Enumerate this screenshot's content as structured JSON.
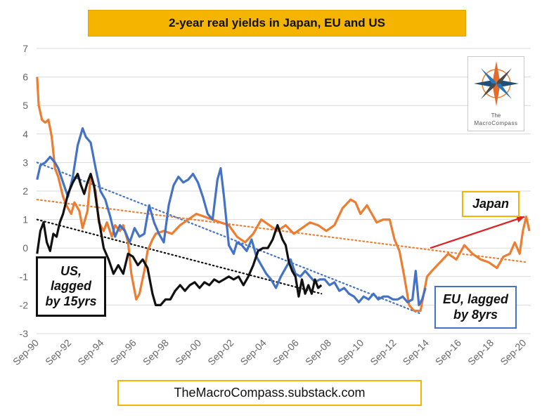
{
  "chart_data": {
    "type": "line",
    "title": "2-year real yields in Japan, EU and US",
    "xlabel": "",
    "ylabel": "",
    "ylim": [
      -3,
      7
    ],
    "yticks": [
      -3,
      -2,
      -1,
      0,
      1,
      2,
      3,
      4,
      5,
      6,
      7
    ],
    "xlim": [
      1990.667,
      2021.083
    ],
    "xticks": [
      "Sep-90",
      "Sep-92",
      "Sep-94",
      "Sep-96",
      "Sep-98",
      "Sep-00",
      "Sep-02",
      "Sep-04",
      "Sep-06",
      "Sep-08",
      "Sep-10",
      "Sep-12",
      "Sep-14",
      "Sep-16",
      "Sep-18",
      "Sep-20"
    ],
    "grid": true,
    "series": [
      {
        "name": "Japan",
        "color": "#ed7d31",
        "points": [
          [
            1990.7,
            6.0
          ],
          [
            1990.8,
            5.0
          ],
          [
            1991.0,
            4.5
          ],
          [
            1991.2,
            4.4
          ],
          [
            1991.4,
            4.5
          ],
          [
            1991.6,
            3.9
          ],
          [
            1991.8,
            2.8
          ],
          [
            1992.0,
            2.5
          ],
          [
            1992.3,
            1.8
          ],
          [
            1992.5,
            1.5
          ],
          [
            1992.8,
            1.2
          ],
          [
            1993.0,
            1.6
          ],
          [
            1993.3,
            1.3
          ],
          [
            1993.5,
            0.7
          ],
          [
            1993.8,
            1.3
          ],
          [
            1994.0,
            2.5
          ],
          [
            1994.3,
            2.0
          ],
          [
            1994.5,
            0.9
          ],
          [
            1994.8,
            0.6
          ],
          [
            1995.0,
            0.9
          ],
          [
            1995.3,
            0.4
          ],
          [
            1995.5,
            0.8
          ],
          [
            1995.8,
            0.6
          ],
          [
            1996.0,
            0.8
          ],
          [
            1996.3,
            0.2
          ],
          [
            1996.5,
            -0.9
          ],
          [
            1996.8,
            -1.8
          ],
          [
            1997.0,
            -1.6
          ],
          [
            1997.3,
            -0.8
          ],
          [
            1997.5,
            -0.1
          ],
          [
            1997.8,
            0.3
          ],
          [
            1998.0,
            0.5
          ],
          [
            1998.5,
            0.6
          ],
          [
            1999.0,
            0.5
          ],
          [
            1999.5,
            0.8
          ],
          [
            2000.0,
            1.0
          ],
          [
            2000.5,
            1.2
          ],
          [
            2001.0,
            1.1
          ],
          [
            2001.5,
            1.0
          ],
          [
            2002.0,
            0.9
          ],
          [
            2002.5,
            0.8
          ],
          [
            2003.0,
            0.4
          ],
          [
            2003.5,
            0.2
          ],
          [
            2004.0,
            0.5
          ],
          [
            2004.5,
            1.0
          ],
          [
            2005.0,
            0.8
          ],
          [
            2005.5,
            0.6
          ],
          [
            2006.0,
            0.8
          ],
          [
            2006.5,
            0.5
          ],
          [
            2007.0,
            0.7
          ],
          [
            2007.5,
            0.9
          ],
          [
            2008.0,
            0.8
          ],
          [
            2008.5,
            0.6
          ],
          [
            2009.0,
            0.8
          ],
          [
            2009.5,
            1.4
          ],
          [
            2010.0,
            1.7
          ],
          [
            2010.3,
            1.6
          ],
          [
            2010.6,
            1.2
          ],
          [
            2011.0,
            1.5
          ],
          [
            2011.3,
            1.2
          ],
          [
            2011.6,
            0.9
          ],
          [
            2012.0,
            1.0
          ],
          [
            2012.4,
            1.0
          ],
          [
            2012.7,
            0.3
          ],
          [
            2013.0,
            -0.1
          ],
          [
            2013.3,
            -1.0
          ],
          [
            2013.6,
            -2.0
          ],
          [
            2013.9,
            -2.2
          ],
          [
            2014.3,
            -2.2
          ],
          [
            2014.7,
            -1.0
          ],
          [
            2015.0,
            -0.8
          ],
          [
            2015.5,
            -0.5
          ],
          [
            2016.0,
            -0.2
          ],
          [
            2016.5,
            -0.4
          ],
          [
            2017.0,
            0.1
          ],
          [
            2017.5,
            -0.2
          ],
          [
            2018.0,
            -0.4
          ],
          [
            2018.5,
            -0.5
          ],
          [
            2019.0,
            -0.7
          ],
          [
            2019.4,
            -0.3
          ],
          [
            2019.8,
            -0.2
          ],
          [
            2020.1,
            0.2
          ],
          [
            2020.4,
            -0.2
          ],
          [
            2020.6,
            0.6
          ],
          [
            2020.8,
            1.1
          ],
          [
            2021.0,
            0.6
          ]
        ]
      },
      {
        "name": "EU, lagged by 8yrs",
        "color": "#4472c4",
        "points": [
          [
            1990.7,
            2.4
          ],
          [
            1990.9,
            2.9
          ],
          [
            1991.2,
            3.0
          ],
          [
            1991.5,
            3.2
          ],
          [
            1991.8,
            3.0
          ],
          [
            1992.0,
            2.8
          ],
          [
            1992.3,
            2.3
          ],
          [
            1992.6,
            1.8
          ],
          [
            1992.9,
            2.5
          ],
          [
            1993.2,
            3.6
          ],
          [
            1993.5,
            4.2
          ],
          [
            1993.7,
            3.9
          ],
          [
            1994.0,
            3.7
          ],
          [
            1994.3,
            2.8
          ],
          [
            1994.6,
            2.0
          ],
          [
            1994.9,
            1.7
          ],
          [
            1995.2,
            1.1
          ],
          [
            1995.5,
            0.4
          ],
          [
            1995.8,
            0.8
          ],
          [
            1996.1,
            0.6
          ],
          [
            1996.4,
            0.2
          ],
          [
            1996.7,
            0.7
          ],
          [
            1997.0,
            0.4
          ],
          [
            1997.3,
            0.5
          ],
          [
            1997.6,
            1.5
          ],
          [
            1997.9,
            0.9
          ],
          [
            1998.2,
            0.5
          ],
          [
            1998.5,
            0.2
          ],
          [
            1998.8,
            1.5
          ],
          [
            1999.1,
            2.2
          ],
          [
            1999.4,
            2.5
          ],
          [
            1999.7,
            2.3
          ],
          [
            2000.0,
            2.4
          ],
          [
            2000.3,
            2.6
          ],
          [
            2000.6,
            2.3
          ],
          [
            2000.9,
            1.8
          ],
          [
            2001.2,
            1.2
          ],
          [
            2001.5,
            1.0
          ],
          [
            2001.8,
            2.4
          ],
          [
            2002.0,
            2.8
          ],
          [
            2002.2,
            1.8
          ],
          [
            2002.5,
            0.1
          ],
          [
            2002.8,
            -0.2
          ],
          [
            2003.0,
            0.2
          ],
          [
            2003.3,
            0.1
          ],
          [
            2003.6,
            -0.1
          ],
          [
            2003.9,
            0.3
          ],
          [
            2004.2,
            -0.3
          ],
          [
            2004.5,
            -0.6
          ],
          [
            2004.8,
            -0.9
          ],
          [
            2005.1,
            -1.1
          ],
          [
            2005.4,
            -1.4
          ],
          [
            2005.7,
            -1.0
          ],
          [
            2006.0,
            -0.7
          ],
          [
            2006.3,
            -0.4
          ],
          [
            2006.6,
            -0.9
          ],
          [
            2006.9,
            -1.0
          ],
          [
            2007.2,
            -0.8
          ],
          [
            2007.5,
            -1.0
          ],
          [
            2007.8,
            -1.2
          ],
          [
            2008.1,
            -1.1
          ],
          [
            2008.4,
            -1.1
          ],
          [
            2008.7,
            -1.3
          ],
          [
            2009.0,
            -1.2
          ],
          [
            2009.3,
            -1.5
          ],
          [
            2009.6,
            -1.4
          ],
          [
            2009.9,
            -1.6
          ],
          [
            2010.2,
            -1.7
          ],
          [
            2010.5,
            -1.9
          ],
          [
            2010.8,
            -1.7
          ],
          [
            2011.1,
            -1.8
          ],
          [
            2011.4,
            -1.6
          ],
          [
            2011.7,
            -1.8
          ],
          [
            2012.0,
            -1.7
          ],
          [
            2012.3,
            -1.7
          ],
          [
            2012.6,
            -1.8
          ],
          [
            2012.9,
            -1.8
          ],
          [
            2013.2,
            -1.7
          ],
          [
            2013.5,
            -1.9
          ],
          [
            2013.8,
            -1.8
          ],
          [
            2014.0,
            -0.8
          ],
          [
            2014.2,
            -2.0
          ],
          [
            2014.4,
            -1.8
          ],
          [
            2014.6,
            -1.4
          ]
        ]
      },
      {
        "name": "US, lagged by 15yrs",
        "color": "#111111",
        "points": [
          [
            1990.7,
            -0.2
          ],
          [
            1990.9,
            0.6
          ],
          [
            1991.1,
            0.9
          ],
          [
            1991.3,
            0.2
          ],
          [
            1991.5,
            -0.1
          ],
          [
            1991.7,
            0.5
          ],
          [
            1991.9,
            0.4
          ],
          [
            1992.1,
            0.9
          ],
          [
            1992.3,
            1.2
          ],
          [
            1992.6,
            1.9
          ],
          [
            1992.9,
            2.3
          ],
          [
            1993.2,
            2.6
          ],
          [
            1993.4,
            2.2
          ],
          [
            1993.6,
            1.9
          ],
          [
            1993.8,
            2.3
          ],
          [
            1994.0,
            2.6
          ],
          [
            1994.2,
            2.2
          ],
          [
            1994.5,
            1.0
          ],
          [
            1994.8,
            0.0
          ],
          [
            1995.1,
            -0.4
          ],
          [
            1995.4,
            -0.9
          ],
          [
            1995.7,
            -0.6
          ],
          [
            1996.0,
            -0.9
          ],
          [
            1996.3,
            -0.2
          ],
          [
            1996.6,
            -0.3
          ],
          [
            1996.9,
            -0.6
          ],
          [
            1997.2,
            -0.4
          ],
          [
            1997.5,
            -0.7
          ],
          [
            1997.8,
            -1.6
          ],
          [
            1998.0,
            -2.0
          ],
          [
            1998.3,
            -2.0
          ],
          [
            1998.6,
            -1.8
          ],
          [
            1998.9,
            -1.8
          ],
          [
            1999.2,
            -1.5
          ],
          [
            1999.5,
            -1.3
          ],
          [
            1999.8,
            -1.5
          ],
          [
            2000.1,
            -1.3
          ],
          [
            2000.4,
            -1.2
          ],
          [
            2000.7,
            -1.4
          ],
          [
            2001.0,
            -1.2
          ],
          [
            2001.3,
            -1.3
          ],
          [
            2001.6,
            -1.1
          ],
          [
            2001.9,
            -1.2
          ],
          [
            2002.2,
            -1.1
          ],
          [
            2002.5,
            -1.0
          ],
          [
            2002.8,
            -1.1
          ],
          [
            2003.1,
            -1.0
          ],
          [
            2003.4,
            -1.3
          ],
          [
            2003.7,
            -1.0
          ],
          [
            2004.0,
            -0.6
          ],
          [
            2004.3,
            -0.1
          ],
          [
            2004.6,
            0.0
          ],
          [
            2004.9,
            0.0
          ],
          [
            2005.2,
            0.3
          ],
          [
            2005.5,
            0.8
          ],
          [
            2005.8,
            0.3
          ],
          [
            2006.0,
            0.1
          ],
          [
            2006.2,
            -0.5
          ],
          [
            2006.4,
            -0.8
          ],
          [
            2006.6,
            -1.0
          ],
          [
            2006.8,
            -1.7
          ],
          [
            2007.0,
            -1.1
          ],
          [
            2007.2,
            -1.6
          ],
          [
            2007.4,
            -1.3
          ],
          [
            2007.6,
            -1.6
          ],
          [
            2007.8,
            -1.1
          ],
          [
            2008.0,
            -1.4
          ],
          [
            2008.2,
            -1.3
          ]
        ]
      }
    ],
    "trendlines": [
      {
        "of": "Japan",
        "color": "#ed7d31",
        "from": [
          1990.7,
          1.7
        ],
        "to": [
          2020.9,
          -0.5
        ]
      },
      {
        "of": "EU, lagged by 8yrs",
        "color": "#4472c4",
        "from": [
          1990.7,
          3.0
        ],
        "to": [
          2014.3,
          -2.3
        ]
      },
      {
        "of": "US, lagged by 15yrs",
        "color": "#111111",
        "from": [
          1990.7,
          1.0
        ],
        "to": [
          2008.2,
          -1.6
        ]
      }
    ],
    "arrow": {
      "color": "#e02020",
      "from": [
        2014.9,
        0.0
      ],
      "to": [
        2020.7,
        1.1
      ]
    },
    "annotations": {
      "us": "US,\nlagged\nby 15yrs",
      "eu": "EU, lagged\nby 8yrs",
      "japan": "Japan"
    },
    "source": "TheMacroCompass.substack.com",
    "logo": {
      "line1": "The",
      "line2": "MacroCompass"
    }
  }
}
